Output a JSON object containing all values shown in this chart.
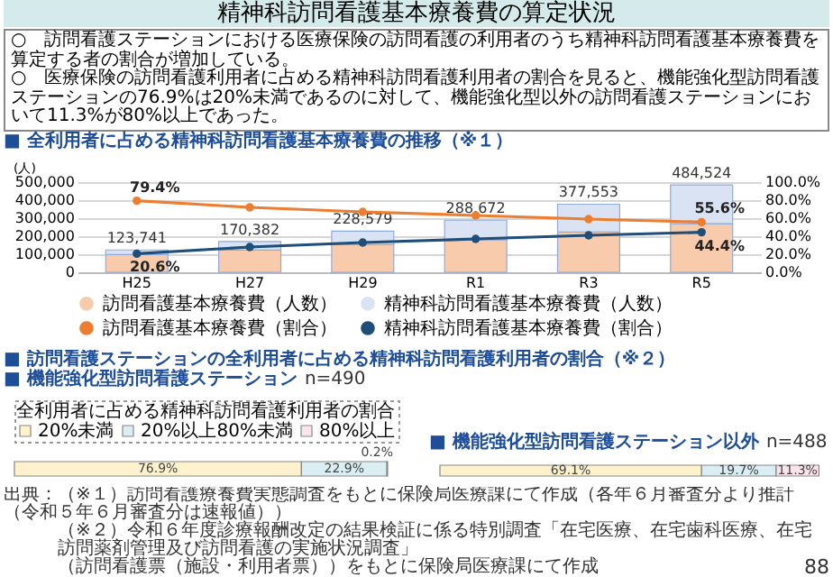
{
  "chart_data": [
    {
      "type": "other",
      "title": "精神科訪問看護基本療養費の算定状況",
      "annotations": [
        "○　訪問看護ステーションにおける医療保険の訪問看護の利用者のうち精神科訪問看護基本療養費を算定する者の割合が増加している。",
        "○　医療保険の訪問看護利用者に占める精神科訪問看護利用者の割合を見ると、機能強化型訪問看護ステーションの76.9%は20%未満であるのに対して、機能強化型以外の訪問看護ステーションにおいて11.3%が80%以上であった。"
      ]
    },
    {
      "type": "bar",
      "title": "■ 全利用者に占める精神科訪問看護基本療養費の推移（※１）",
      "ylabel": "(人)",
      "categories": [
        "H25",
        "H27",
        "H29",
        "R1",
        "R3",
        "R5"
      ],
      "stacked": true,
      "ylim": [
        0,
        500000
      ],
      "yticks": [
        0,
        {
          "value": 100000,
          "label": "100,000"
        },
        {
          "value": 200000,
          "label": "200,000"
        },
        {
          "value": 300000,
          "label": "300,000"
        },
        {
          "value": 400000,
          "label": "400,000"
        },
        {
          "value": 500000,
          "label": "500,000"
        }
      ],
      "y2lim": [
        0,
        100
      ],
      "y2ticks": [
        {
          "value": 0,
          "label": "0.0%"
        },
        {
          "value": 20,
          "label": "20.0%"
        },
        {
          "value": 40,
          "label": "40.0%"
        },
        {
          "value": 60,
          "label": "60.0%"
        },
        {
          "value": 80,
          "label": "80.0%"
        },
        {
          "value": 100,
          "label": "100.0%"
        }
      ],
      "grid": "y",
      "legend": "bottom",
      "marker": "circle",
      "line_style": "solid",
      "totals": [
        "123,741",
        "170,382",
        "228,579",
        "288,672",
        "377,553",
        "484,524"
      ],
      "series": [
        {
          "name": "訪問看護基本療養費（人数）",
          "color": "#f8cbad",
          "values": [
            98000,
            123000,
            153000,
            181000,
            223000,
            269000
          ]
        },
        {
          "name": "精神科訪問看護基本療養費（人数）",
          "color": "#dae3f3",
          "values": [
            25741,
            47382,
            75579,
            107672,
            154553,
            215524
          ]
        },
        {
          "name": "訪問看護基本療養費（割合）",
          "type": "line",
          "axis": "y2",
          "color": "#ed7d31",
          "values": [
            79.4,
            72,
            67,
            63,
            59,
            55.6
          ],
          "value_labels": [
            "79.4%",
            null,
            null,
            null,
            null,
            "55.6%"
          ]
        },
        {
          "name": "精神科訪問看護基本療養費（割合）",
          "type": "line",
          "axis": "y2",
          "color": "#1f4e79",
          "values": [
            20.6,
            28,
            33,
            37,
            41,
            44.4
          ],
          "value_labels": [
            "20.6%",
            null,
            null,
            null,
            null,
            "44.4%"
          ]
        }
      ]
    },
    {
      "type": "other",
      "title": "■ 訪問看護ステーションの全利用者に占める精神科訪問看護利用者の割合（※２）"
    },
    {
      "type": "bar",
      "orientation": "horizontal",
      "stacked": true,
      "title": "■ 機能強化型訪問看護ステーション",
      "subtitle": "n=490",
      "categories": [
        null
      ],
      "xlim": [
        0,
        100
      ],
      "legend": "top",
      "legend_title": "全利用者に占める精神科訪問看護利用者の割合",
      "series": [
        {
          "name": "20%未満",
          "color": "#fff2cc",
          "values": [
            76.9
          ],
          "value_labels": [
            "76.9%"
          ]
        },
        {
          "name": "20%以上80%未満",
          "color": "#daeef3",
          "values": [
            22.9
          ],
          "value_labels": [
            "22.9%"
          ]
        },
        {
          "name": "80%以上",
          "color": "#fce4ec",
          "values": [
            0.2
          ],
          "value_labels": [
            "0.2%"
          ]
        }
      ]
    },
    {
      "type": "bar",
      "orientation": "horizontal",
      "stacked": true,
      "title": "■ 機能強化型訪問看護ステーション以外",
      "subtitle": "n=488",
      "categories": [
        null
      ],
      "xlim": [
        0,
        100
      ],
      "series": [
        {
          "color": "#fff2cc",
          "values": [
            69.1
          ],
          "value_labels": [
            "69.1%"
          ]
        },
        {
          "color": "#daeef3",
          "values": [
            19.7
          ],
          "value_labels": [
            "19.7%"
          ]
        },
        {
          "color": "#fce4ec",
          "values": [
            11.3
          ],
          "value_labels": [
            "11.3%"
          ]
        }
      ]
    },
    {
      "type": "other",
      "annotations": [
        "出典：（※１）訪問看護療養費実態調査をもとに保険局医療課にて作成（各年６月審査分より推計（令和５年６月審査分は速報値））",
        "（※２）令和６年度診療報酬改定の結果検証に係る特別調査「在宅医療、在宅歯科医療、在宅訪問薬剤管理及び訪問看護の実施状況調査」",
        "（訪問看護票（施設・利用者票））をもとに保険局医療課にて作成",
        "88"
      ]
    }
  ]
}
